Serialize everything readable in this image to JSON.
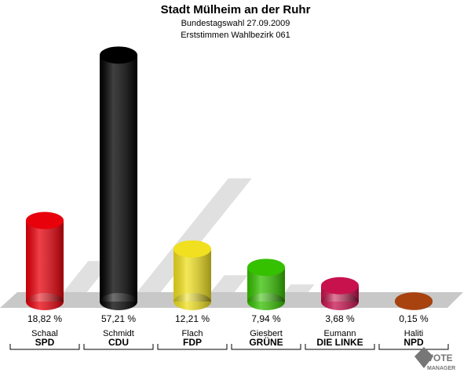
{
  "chart_data": {
    "type": "bar",
    "title": "Stadt Mülheim an der Ruhr",
    "subtitle": "Bundestagswahl 27.09.2009",
    "subtitle2": "Erststimmen Wahlbezirk 061",
    "candidates": [
      "Schaal",
      "Schmidt",
      "Flach",
      "Giesbert",
      "Eumann",
      "Haliti"
    ],
    "categories": [
      "SPD",
      "CDU",
      "FDP",
      "GRÜNE",
      "DIE LINKE",
      "NPD"
    ],
    "values": [
      18.82,
      57.21,
      12.21,
      7.94,
      3.68,
      0.15
    ],
    "value_labels": [
      "18,82 %",
      "57,21 %",
      "12,21 %",
      "7,94 %",
      "3,68 %",
      "0,15 %"
    ],
    "colors": [
      "#e8000b",
      "#000000",
      "#f0e020",
      "#35c000",
      "#c8124e",
      "#a84310"
    ],
    "logo": [
      "VOTE",
      "MANAGER"
    ]
  }
}
